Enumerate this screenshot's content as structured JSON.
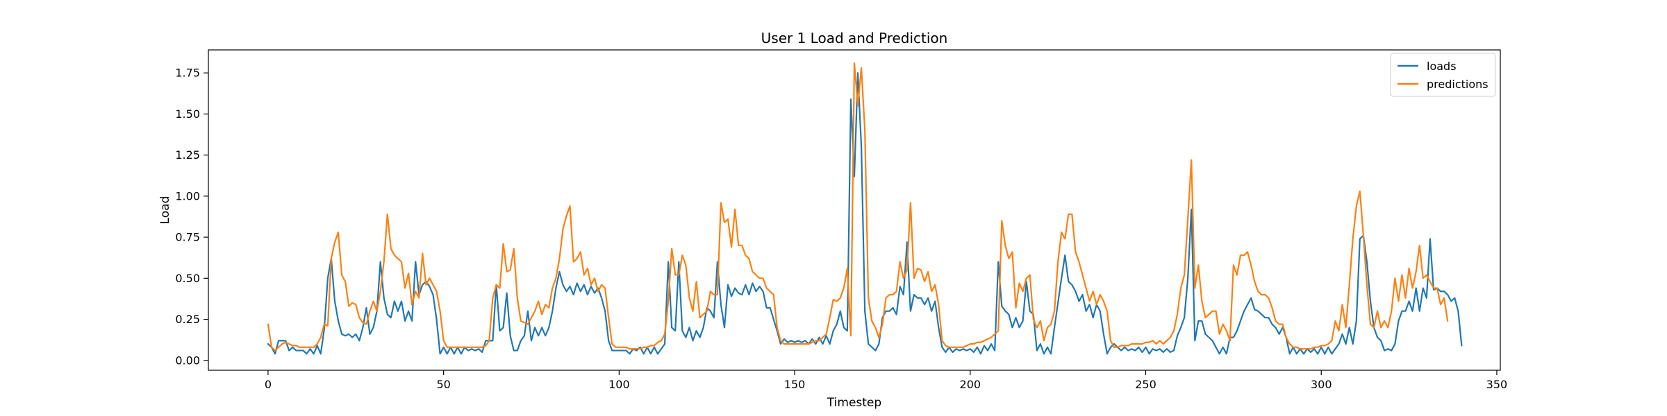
{
  "chart_data": {
    "type": "line",
    "title": "User 1 Load and Prediction",
    "xlabel": "Timestep",
    "ylabel": "Load",
    "xlim": [
      -17,
      351
    ],
    "ylim": [
      -0.06,
      1.89
    ],
    "xticks": [
      "0",
      "50",
      "100",
      "150",
      "200",
      "250",
      "300",
      "350"
    ],
    "yticks": [
      "0.00",
      "0.25",
      "0.50",
      "0.75",
      "1.00",
      "1.25",
      "1.50",
      "1.75"
    ],
    "legend_position": "top-right",
    "grid": false,
    "series": [
      {
        "name": "loads",
        "color": "#1f77b4",
        "values": [
          0.1,
          0.08,
          0.04,
          0.12,
          0.12,
          0.12,
          0.06,
          0.08,
          0.06,
          0.06,
          0.06,
          0.04,
          0.07,
          0.04,
          0.09,
          0.04,
          0.19,
          0.5,
          0.62,
          0.36,
          0.24,
          0.16,
          0.15,
          0.16,
          0.14,
          0.16,
          0.12,
          0.2,
          0.32,
          0.16,
          0.2,
          0.3,
          0.6,
          0.38,
          0.28,
          0.26,
          0.36,
          0.3,
          0.36,
          0.24,
          0.3,
          0.24,
          0.6,
          0.4,
          0.46,
          0.48,
          0.45,
          0.4,
          0.25,
          0.04,
          0.08,
          0.04,
          0.08,
          0.04,
          0.08,
          0.04,
          0.08,
          0.06,
          0.07,
          0.06,
          0.07,
          0.05,
          0.12,
          0.12,
          0.12,
          0.46,
          0.18,
          0.2,
          0.41,
          0.15,
          0.06,
          0.06,
          0.12,
          0.15,
          0.3,
          0.12,
          0.2,
          0.15,
          0.2,
          0.15,
          0.2,
          0.3,
          0.44,
          0.54,
          0.46,
          0.42,
          0.45,
          0.4,
          0.47,
          0.42,
          0.46,
          0.4,
          0.45,
          0.41,
          0.44,
          0.38,
          0.3,
          0.12,
          0.06,
          0.06,
          0.06,
          0.06,
          0.06,
          0.04,
          0.07,
          0.06,
          0.08,
          0.04,
          0.08,
          0.04,
          0.08,
          0.04,
          0.07,
          0.1,
          0.6,
          0.2,
          0.18,
          0.6,
          0.18,
          0.14,
          0.2,
          0.12,
          0.18,
          0.14,
          0.2,
          0.32,
          0.3,
          0.26,
          0.6,
          0.34,
          0.2,
          0.46,
          0.39,
          0.44,
          0.41,
          0.4,
          0.46,
          0.4,
          0.47,
          0.42,
          0.45,
          0.42,
          0.32,
          0.32,
          0.25,
          0.18,
          0.1,
          0.13,
          0.11,
          0.12,
          0.11,
          0.12,
          0.11,
          0.12,
          0.1,
          0.13,
          0.1,
          0.14,
          0.1,
          0.15,
          0.1,
          0.18,
          0.22,
          0.3,
          0.2,
          0.18,
          1.59,
          1.12,
          1.75,
          1.3,
          0.3,
          0.1,
          0.08,
          0.06,
          0.1,
          0.26,
          0.3,
          0.3,
          0.32,
          0.28,
          0.45,
          0.4,
          0.72,
          0.3,
          0.4,
          0.38,
          0.38,
          0.34,
          0.38,
          0.3,
          0.36,
          0.2,
          0.08,
          0.05,
          0.08,
          0.05,
          0.07,
          0.06,
          0.07,
          0.06,
          0.07,
          0.05,
          0.08,
          0.04,
          0.09,
          0.06,
          0.1,
          0.06,
          0.6,
          0.33,
          0.3,
          0.28,
          0.2,
          0.26,
          0.2,
          0.24,
          0.48,
          0.3,
          0.28,
          0.06,
          0.1,
          0.04,
          0.08,
          0.04,
          0.2,
          0.35,
          0.5,
          0.64,
          0.48,
          0.46,
          0.42,
          0.36,
          0.4,
          0.3,
          0.34,
          0.26,
          0.34,
          0.3,
          0.16,
          0.04,
          0.08,
          0.1,
          0.08,
          0.06,
          0.08,
          0.06,
          0.07,
          0.06,
          0.08,
          0.05,
          0.08,
          0.04,
          0.07,
          0.06,
          0.07,
          0.05,
          0.07,
          0.05,
          0.06,
          0.15,
          0.2,
          0.26,
          0.5,
          0.92,
          0.12,
          0.24,
          0.24,
          0.16,
          0.14,
          0.12,
          0.08,
          0.04,
          0.08,
          0.04,
          0.14,
          0.14,
          0.18,
          0.24,
          0.3,
          0.34,
          0.38,
          0.31,
          0.3,
          0.28,
          0.26,
          0.26,
          0.22,
          0.2,
          0.16,
          0.2,
          0.14,
          0.04,
          0.08,
          0.04,
          0.07,
          0.04,
          0.07,
          0.05,
          0.07,
          0.04,
          0.08,
          0.04,
          0.08,
          0.04,
          0.07,
          0.1,
          0.16,
          0.1,
          0.2,
          0.1,
          0.24,
          0.74,
          0.76,
          0.6,
          0.36,
          0.2,
          0.14,
          0.12,
          0.06,
          0.07,
          0.06,
          0.1,
          0.24,
          0.3,
          0.3,
          0.36,
          0.3,
          0.44,
          0.3,
          0.44,
          0.38,
          0.74,
          0.43,
          0.44,
          0.42,
          0.42,
          0.4,
          0.36,
          0.38,
          0.3,
          0.09
        ]
      },
      {
        "name": "predictions",
        "color": "#ff7f0e",
        "values": [
          0.22,
          0.08,
          0.06,
          0.08,
          0.1,
          0.11,
          0.1,
          0.09,
          0.09,
          0.08,
          0.08,
          0.08,
          0.08,
          0.08,
          0.1,
          0.14,
          0.22,
          0.21,
          0.62,
          0.72,
          0.78,
          0.52,
          0.48,
          0.33,
          0.35,
          0.34,
          0.26,
          0.23,
          0.22,
          0.3,
          0.36,
          0.3,
          0.42,
          0.6,
          0.89,
          0.68,
          0.64,
          0.62,
          0.6,
          0.44,
          0.53,
          0.34,
          0.42,
          0.38,
          0.65,
          0.46,
          0.5,
          0.46,
          0.42,
          0.3,
          0.12,
          0.08,
          0.08,
          0.08,
          0.08,
          0.08,
          0.08,
          0.08,
          0.08,
          0.08,
          0.08,
          0.08,
          0.09,
          0.12,
          0.38,
          0.46,
          0.44,
          0.71,
          0.54,
          0.55,
          0.68,
          0.38,
          0.24,
          0.23,
          0.22,
          0.26,
          0.3,
          0.36,
          0.28,
          0.34,
          0.32,
          0.44,
          0.5,
          0.62,
          0.8,
          0.88,
          0.94,
          0.6,
          0.62,
          0.66,
          0.52,
          0.56,
          0.46,
          0.5,
          0.42,
          0.46,
          0.44,
          0.26,
          0.1,
          0.08,
          0.08,
          0.08,
          0.08,
          0.07,
          0.07,
          0.07,
          0.07,
          0.08,
          0.08,
          0.09,
          0.09,
          0.11,
          0.12,
          0.16,
          0.36,
          0.68,
          0.52,
          0.52,
          0.64,
          0.58,
          0.38,
          0.3,
          0.48,
          0.26,
          0.28,
          0.3,
          0.42,
          0.4,
          0.4,
          0.96,
          0.84,
          0.86,
          0.69,
          0.92,
          0.7,
          0.7,
          0.64,
          0.62,
          0.54,
          0.52,
          0.5,
          0.5,
          0.44,
          0.42,
          0.4,
          0.2,
          0.12,
          0.1,
          0.1,
          0.1,
          0.1,
          0.1,
          0.1,
          0.1,
          0.1,
          0.11,
          0.12,
          0.12,
          0.14,
          0.16,
          0.26,
          0.37,
          0.36,
          0.38,
          0.44,
          0.56,
          0.15,
          1.81,
          1.55,
          1.78,
          1.4,
          0.38,
          0.24,
          0.2,
          0.14,
          0.22,
          0.38,
          0.4,
          0.4,
          0.42,
          0.6,
          0.5,
          0.55,
          0.96,
          0.5,
          0.56,
          0.55,
          0.48,
          0.54,
          0.42,
          0.46,
          0.34,
          0.12,
          0.09,
          0.08,
          0.08,
          0.08,
          0.08,
          0.08,
          0.09,
          0.1,
          0.1,
          0.11,
          0.11,
          0.12,
          0.13,
          0.14,
          0.16,
          0.18,
          0.85,
          0.7,
          0.62,
          0.66,
          0.32,
          0.47,
          0.42,
          0.5,
          0.52,
          0.25,
          0.2,
          0.24,
          0.12,
          0.2,
          0.22,
          0.3,
          0.6,
          0.78,
          0.74,
          0.89,
          0.89,
          0.66,
          0.6,
          0.52,
          0.44,
          0.36,
          0.42,
          0.34,
          0.4,
          0.36,
          0.3,
          0.12,
          0.08,
          0.08,
          0.09,
          0.09,
          0.09,
          0.1,
          0.1,
          0.1,
          0.1,
          0.11,
          0.11,
          0.12,
          0.1,
          0.12,
          0.1,
          0.12,
          0.14,
          0.18,
          0.28,
          0.44,
          0.52,
          0.86,
          1.22,
          0.44,
          0.58,
          0.36,
          0.26,
          0.28,
          0.3,
          0.3,
          0.16,
          0.22,
          0.18,
          0.12,
          0.58,
          0.52,
          0.64,
          0.64,
          0.66,
          0.58,
          0.48,
          0.42,
          0.4,
          0.4,
          0.38,
          0.32,
          0.24,
          0.22,
          0.22,
          0.14,
          0.1,
          0.08,
          0.08,
          0.07,
          0.07,
          0.07,
          0.07,
          0.08,
          0.08,
          0.09,
          0.09,
          0.1,
          0.12,
          0.24,
          0.18,
          0.34,
          0.2,
          0.46,
          0.74,
          0.94,
          1.03,
          0.76,
          0.46,
          0.22,
          0.2,
          0.3,
          0.2,
          0.24,
          0.2,
          0.3,
          0.5,
          0.36,
          0.52,
          0.38,
          0.56,
          0.44,
          0.54,
          0.7,
          0.5,
          0.52,
          0.48,
          0.44,
          0.44,
          0.34,
          0.38,
          0.24
        ]
      }
    ]
  }
}
